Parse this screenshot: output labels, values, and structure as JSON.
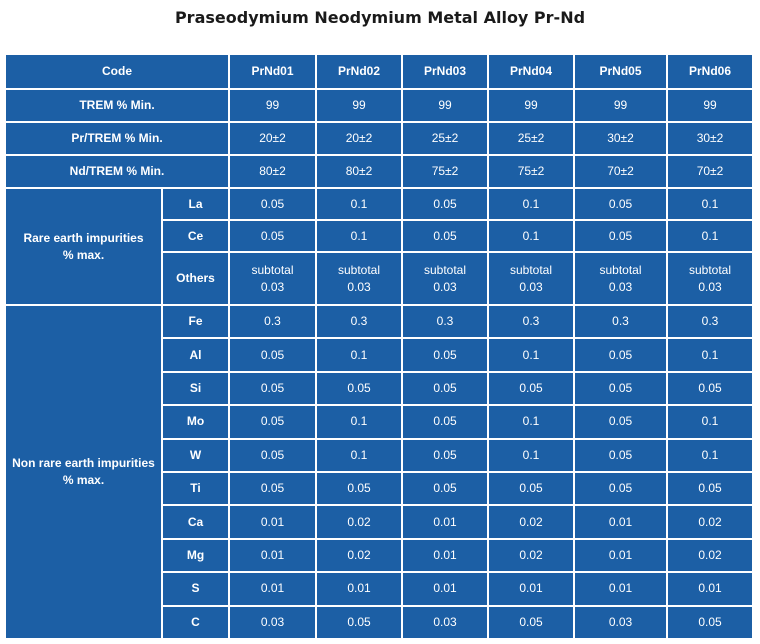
{
  "title": "Praseodymium Neodymium Metal Alloy Pr-Nd",
  "header": {
    "label": "Code",
    "codes": [
      "PrNd01",
      "PrNd02",
      "PrNd03",
      "PrNd04",
      "PrNd05",
      "PrNd06"
    ]
  },
  "main_rows": [
    {
      "label": "TREM % Min.",
      "values": [
        "99",
        "99",
        "99",
        "99",
        "99",
        "99"
      ]
    },
    {
      "label": "Pr/TREM % Min.",
      "values": [
        "20±2",
        "20±2",
        "25±2",
        "25±2",
        "30±2",
        "30±2"
      ]
    },
    {
      "label": "Nd/TREM % Min.",
      "values": [
        "80±2",
        "80±2",
        "75±2",
        "75±2",
        "70±2",
        "70±2"
      ]
    }
  ],
  "groups": [
    {
      "label_line1": "Rare earth impurities",
      "label_line2": "% max.",
      "rows": [
        {
          "element": "La",
          "values": [
            "0.05",
            "0.1",
            "0.05",
            "0.1",
            "0.05",
            "0.1"
          ]
        },
        {
          "element": "Ce",
          "values": [
            "0.05",
            "0.1",
            "0.05",
            "0.1",
            "0.05",
            "0.1"
          ]
        },
        {
          "element": "Others",
          "values": [
            "subtotal 0.03",
            "subtotal 0.03",
            "subtotal 0.03",
            "subtotal 0.03",
            "subtotal 0.03",
            "subtotal 0.03"
          ]
        }
      ]
    },
    {
      "label_line1": "Non rare earth impurities",
      "label_line2": "% max.",
      "rows": [
        {
          "element": "Fe",
          "values": [
            "0.3",
            "0.3",
            "0.3",
            "0.3",
            "0.3",
            "0.3"
          ]
        },
        {
          "element": "Al",
          "values": [
            "0.05",
            "0.1",
            "0.05",
            "0.1",
            "0.05",
            "0.1"
          ]
        },
        {
          "element": "Si",
          "values": [
            "0.05",
            "0.05",
            "0.05",
            "0.05",
            "0.05",
            "0.05"
          ]
        },
        {
          "element": "Mo",
          "values": [
            "0.05",
            "0.1",
            "0.05",
            "0.1",
            "0.05",
            "0.1"
          ]
        },
        {
          "element": "W",
          "values": [
            "0.05",
            "0.1",
            "0.05",
            "0.1",
            "0.05",
            "0.1"
          ]
        },
        {
          "element": "Ti",
          "values": [
            "0.05",
            "0.05",
            "0.05",
            "0.05",
            "0.05",
            "0.05"
          ]
        },
        {
          "element": "Ca",
          "values": [
            "0.01",
            "0.02",
            "0.01",
            "0.02",
            "0.01",
            "0.02"
          ]
        },
        {
          "element": "Mg",
          "values": [
            "0.01",
            "0.02",
            "0.01",
            "0.02",
            "0.01",
            "0.02"
          ]
        },
        {
          "element": "S",
          "values": [
            "0.01",
            "0.01",
            "0.01",
            "0.01",
            "0.01",
            "0.01"
          ]
        },
        {
          "element": "C",
          "values": [
            "0.03",
            "0.05",
            "0.03",
            "0.05",
            "0.03",
            "0.05"
          ]
        }
      ]
    }
  ],
  "colors": {
    "cell_background": "#1c5fa5",
    "cell_text": "#ffffff",
    "grid_lines": "#ffffff",
    "title_text": "#1a1a1a"
  }
}
